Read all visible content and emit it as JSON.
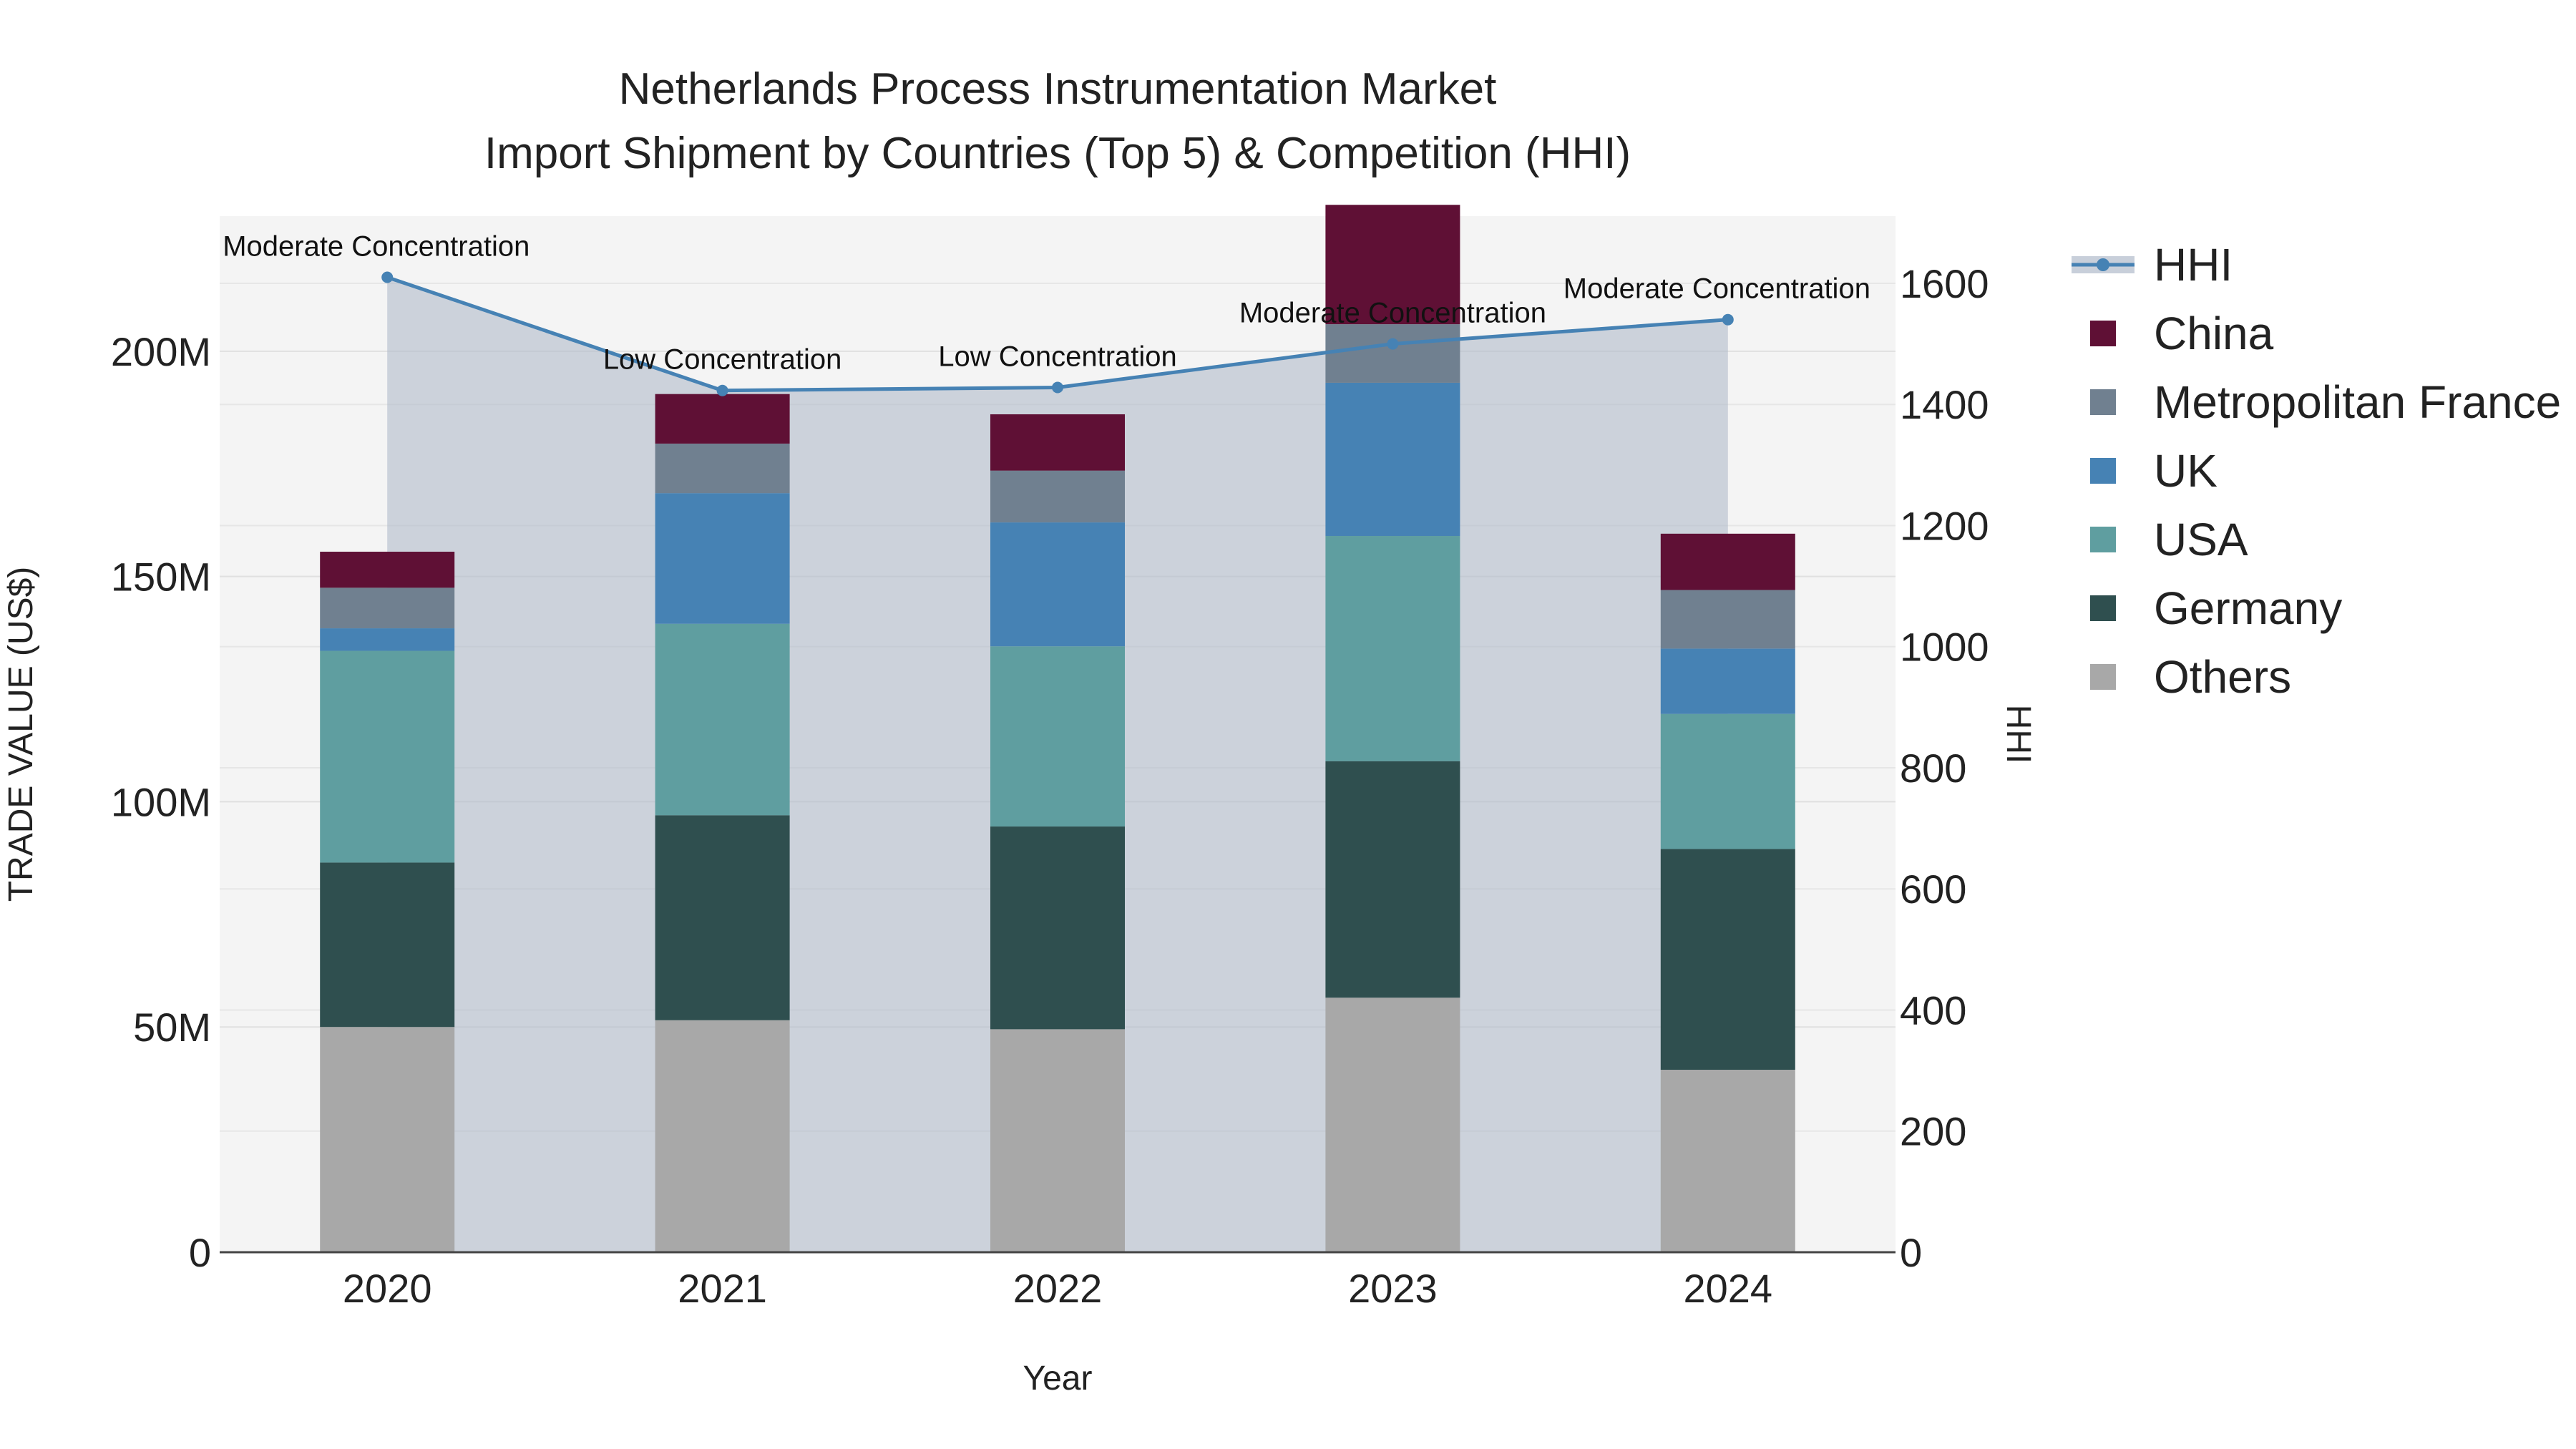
{
  "chart_data": {
    "type": "bar",
    "title_line1": "Netherlands Process Instrumentation Market",
    "title_line2": "Import Shipment by Countries (Top 5) & Competition (HHI)",
    "xlabel": "Year",
    "ylabel": "TRADE VALUE (US$)",
    "y2label": "HHI",
    "categories": [
      "2020",
      "2021",
      "2022",
      "2023",
      "2024"
    ],
    "ylim": [
      0,
      230000000
    ],
    "y_ticks": [
      0,
      50000000,
      100000000,
      150000000,
      200000000
    ],
    "y_tick_labels": [
      "0",
      "50M",
      "100M",
      "150M",
      "200M"
    ],
    "y2lim": [
      0,
      1711
    ],
    "y2_ticks": [
      0,
      200,
      400,
      600,
      800,
      1000,
      1200,
      1400,
      1600
    ],
    "y2_tick_labels": [
      "0",
      "200",
      "400",
      "600",
      "800",
      "1000",
      "1200",
      "1400",
      "1600"
    ],
    "series": [
      {
        "name": "Others",
        "color": "#a8a8a8",
        "values": [
          50000000,
          51500000,
          49500000,
          56500000,
          40500000
        ]
      },
      {
        "name": "Germany",
        "color": "#2f4f4f",
        "values": [
          36500000,
          45500000,
          45000000,
          52500000,
          49000000
        ]
      },
      {
        "name": "USA",
        "color": "#5f9ea0",
        "values": [
          47000000,
          42500000,
          40000000,
          50000000,
          30000000
        ]
      },
      {
        "name": "UK",
        "color": "#4682b4",
        "values": [
          5000000,
          29000000,
          27500000,
          34000000,
          14500000
        ]
      },
      {
        "name": "Metropolitan France",
        "color": "#708090",
        "values": [
          9000000,
          11000000,
          11500000,
          13000000,
          13000000
        ]
      },
      {
        "name": "China",
        "color": "#5f1035",
        "values": [
          8000000,
          11000000,
          12500000,
          26500000,
          12500000
        ]
      }
    ],
    "hhi": {
      "name": "HHI",
      "color": "#4682b4",
      "values": [
        1610,
        1423,
        1428,
        1500,
        1540
      ],
      "annotations": [
        "Moderate Concentration",
        "Low Concentration",
        "Low Concentration",
        "Moderate Concentration",
        "Moderate Concentration"
      ]
    },
    "legend": [
      "HHI",
      "China",
      "Metropolitan France",
      "UK",
      "USA",
      "Germany",
      "Others"
    ],
    "legend_position": "right"
  }
}
